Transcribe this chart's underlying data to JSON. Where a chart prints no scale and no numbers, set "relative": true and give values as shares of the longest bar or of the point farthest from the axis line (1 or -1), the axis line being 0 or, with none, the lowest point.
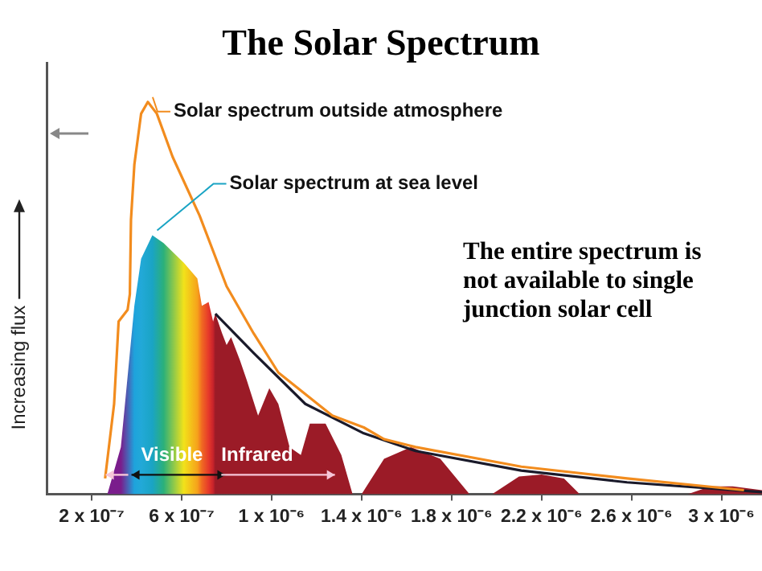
{
  "chart_data": {
    "type": "line",
    "title": "The Solar Spectrum",
    "ylabel": "Increasing flux",
    "relative": true,
    "xlim": [
      0,
      3.18e-06
    ],
    "xticks": [
      {
        "value": 2e-07,
        "label": "2 x 10⁻⁷"
      },
      {
        "value": 6e-07,
        "label": "6 x 10⁻⁷"
      },
      {
        "value": 1e-06,
        "label": "1 x 10⁻⁶"
      },
      {
        "value": 1.4e-06,
        "label": "1.4 x 10⁻⁶"
      },
      {
        "value": 1.8e-06,
        "label": "1.8 x 10⁻⁶"
      },
      {
        "value": 2.2e-06,
        "label": "2.2 x 10⁻⁶"
      },
      {
        "value": 2.6e-06,
        "label": "2.6 x 10⁻⁶"
      },
      {
        "value": 3e-06,
        "label": "3 x 10⁻⁶"
      }
    ],
    "series": [
      {
        "name": "Solar spectrum outside atmosphere",
        "type": "line",
        "color": "#f28c1e",
        "x": [
          2.6e-07,
          3e-07,
          3.2e-07,
          3.6e-07,
          3.7e-07,
          3.75e-07,
          3.9e-07,
          4.2e-07,
          4.5e-07,
          4.9e-07,
          5.6e-07,
          6.8e-07,
          8e-07,
          9.2e-07,
          1.03e-06,
          1.27e-06,
          1.41e-06,
          1.5e-06,
          1.64e-06,
          2.11e-06,
          2.58e-06,
          3.1e-06
        ],
        "values": [
          0.04,
          0.23,
          0.44,
          0.47,
          0.51,
          0.7,
          0.84,
          0.97,
          1.0,
          0.97,
          0.86,
          0.71,
          0.53,
          0.41,
          0.31,
          0.2,
          0.17,
          0.14,
          0.12,
          0.07,
          0.04,
          0.01
        ]
      },
      {
        "name": "Solar spectrum at sea level",
        "type": "area",
        "x": [
          2.7e-07,
          3.3e-07,
          3.9e-07,
          4.2e-07,
          4.7e-07,
          5.2e-07,
          6.1e-07,
          6.7e-07,
          6.9e-07,
          7.2e-07,
          7.4e-07,
          7.5e-07,
          7.8e-07,
          8e-07,
          8.2e-07,
          8.6e-07,
          8.9e-07,
          9.4e-07,
          9.9e-07,
          1.03e-06,
          1.08e-06,
          1.13e-06,
          1.17e-06,
          1.24e-06,
          1.31e-06,
          1.36e-06,
          1.4e-06,
          1.5e-06,
          1.62e-06,
          1.75e-06,
          1.88e-06,
          1.98e-06,
          2.1e-06,
          2.2e-06,
          2.3e-06,
          2.37e-06,
          2.85e-06,
          2.95e-06,
          3.05e-06,
          3.18e-06
        ],
        "values": [
          0,
          0.12,
          0.48,
          0.6,
          0.66,
          0.64,
          0.59,
          0.55,
          0.48,
          0.49,
          0.44,
          0.46,
          0.41,
          0.38,
          0.4,
          0.34,
          0.29,
          0.2,
          0.27,
          0.23,
          0.12,
          0.1,
          0.18,
          0.18,
          0.1,
          0,
          0,
          0.09,
          0.12,
          0.09,
          0,
          0,
          0.045,
          0.05,
          0.04,
          0,
          0,
          0.02,
          0.02,
          0.01
        ],
        "colors": [
          "#7a1d8c",
          "#7a1d8c",
          "#1ea3dc",
          "#22a9d8",
          "#1aa4c4",
          "#2bb07a",
          "#f2e21a",
          "#f6a21b",
          "#f06a22",
          "#e6392a",
          "#c8232b",
          "#9b1b27",
          "#9b1b27",
          "#9b1b27",
          "#9b1b27",
          "#9b1b27",
          "#9b1b27",
          "#9b1b27",
          "#9b1b27",
          "#9b1b27",
          "#9b1b27",
          "#9b1b27",
          "#9b1b27",
          "#9b1b27",
          "#9b1b27",
          "#9b1b27",
          "#9b1b27",
          "#9b1b27",
          "#9b1b27",
          "#9b1b27",
          "#9b1b27",
          "#9b1b27",
          "#9b1b27",
          "#9b1b27",
          "#9b1b27",
          "#9b1b27",
          "#9b1b27",
          "#9b1b27",
          "#9b1b27",
          "#9b1b27"
        ]
      },
      {
        "type": "line",
        "color": "#1a1a2a",
        "x": [
          7.5e-07,
          9.2e-07,
          1.15e-06,
          1.41e-06,
          1.64e-06,
          2.11e-06,
          2.58e-06,
          3.18e-06
        ],
        "values": [
          0.46,
          0.36,
          0.23,
          0.155,
          0.11,
          0.06,
          0.03,
          0.005
        ]
      }
    ],
    "annotations": [
      "The entire spectrum is not available to single junction solar cell",
      "Visible",
      "Infrared"
    ]
  }
}
